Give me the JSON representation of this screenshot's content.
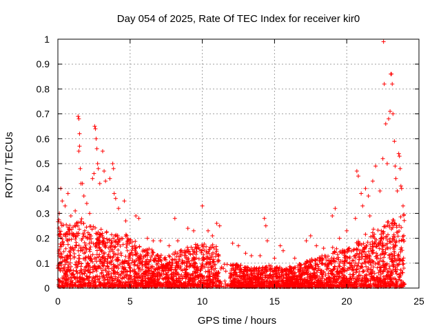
{
  "chart_data": {
    "type": "scatter",
    "title": "Day 054 of 2025, Rate Of TEC Index for receiver kir0",
    "xlabel": "GPS time / hours",
    "ylabel": "ROTI / TECUs",
    "xlim": [
      0,
      25
    ],
    "ylim": [
      0,
      1
    ],
    "xticks": [
      "0",
      "5",
      "10",
      "15",
      "20",
      "25"
    ],
    "yticks": [
      "0",
      "0.1",
      "0.2",
      "0.3",
      "0.4",
      "0.5",
      "0.6",
      "0.7",
      "0.8",
      "0.9",
      "1"
    ],
    "grid": true,
    "marker": "+",
    "color": "#ff0000",
    "series": [
      {
        "name": "ROTI",
        "points": [
          [
            0.1,
            0.3
          ],
          [
            0.2,
            0.4
          ],
          [
            0.3,
            0.35
          ],
          [
            0.5,
            0.33
          ],
          [
            0.7,
            0.38
          ],
          [
            0.9,
            0.29
          ],
          [
            1.2,
            0.31
          ],
          [
            1.4,
            0.69
          ],
          [
            1.45,
            0.68
          ],
          [
            1.5,
            0.62
          ],
          [
            1.5,
            0.57
          ],
          [
            1.45,
            0.55
          ],
          [
            1.55,
            0.48
          ],
          [
            1.6,
            0.42
          ],
          [
            1.7,
            0.42
          ],
          [
            1.8,
            0.37
          ],
          [
            2.0,
            0.34
          ],
          [
            2.2,
            0.3
          ],
          [
            2.4,
            0.44
          ],
          [
            2.5,
            0.46
          ],
          [
            2.55,
            0.65
          ],
          [
            2.6,
            0.64
          ],
          [
            2.65,
            0.6
          ],
          [
            2.7,
            0.56
          ],
          [
            2.75,
            0.5
          ],
          [
            2.8,
            0.48
          ],
          [
            2.9,
            0.42
          ],
          [
            3.1,
            0.55
          ],
          [
            3.2,
            0.47
          ],
          [
            3.3,
            0.43
          ],
          [
            3.6,
            0.44
          ],
          [
            3.8,
            0.5
          ],
          [
            3.85,
            0.48
          ],
          [
            3.9,
            0.38
          ],
          [
            4.0,
            0.36
          ],
          [
            4.2,
            0.32
          ],
          [
            4.6,
            0.35
          ],
          [
            4.7,
            0.27
          ],
          [
            5.4,
            0.29
          ],
          [
            5.6,
            0.28
          ],
          [
            6.2,
            0.2
          ],
          [
            6.6,
            0.19
          ],
          [
            7.1,
            0.19
          ],
          [
            7.7,
            0.17
          ],
          [
            8.1,
            0.28
          ],
          [
            8.3,
            0.19
          ],
          [
            9.0,
            0.24
          ],
          [
            9.4,
            0.23
          ],
          [
            9.6,
            0.16
          ],
          [
            10.0,
            0.33
          ],
          [
            10.4,
            0.23
          ],
          [
            10.7,
            0.21
          ],
          [
            11.0,
            0.26
          ],
          [
            11.2,
            0.25
          ],
          [
            12.1,
            0.18
          ],
          [
            12.5,
            0.17
          ],
          [
            13.0,
            0.14
          ],
          [
            13.4,
            0.13
          ],
          [
            14.0,
            0.13
          ],
          [
            14.3,
            0.28
          ],
          [
            14.4,
            0.25
          ],
          [
            14.5,
            0.19
          ],
          [
            15.0,
            0.12
          ],
          [
            15.4,
            0.17
          ],
          [
            15.6,
            0.15
          ],
          [
            16.4,
            0.12
          ],
          [
            17.2,
            0.19
          ],
          [
            17.5,
            0.21
          ],
          [
            17.9,
            0.17
          ],
          [
            18.4,
            0.16
          ],
          [
            19.0,
            0.29
          ],
          [
            19.2,
            0.32
          ],
          [
            19.5,
            0.2
          ],
          [
            20.0,
            0.23
          ],
          [
            20.6,
            0.28
          ],
          [
            20.7,
            0.47
          ],
          [
            20.8,
            0.45
          ],
          [
            21.0,
            0.38
          ],
          [
            21.1,
            0.33
          ],
          [
            21.3,
            0.4
          ],
          [
            21.5,
            0.37
          ],
          [
            21.6,
            0.29
          ],
          [
            21.8,
            0.43
          ],
          [
            22.0,
            0.49
          ],
          [
            22.3,
            0.39
          ],
          [
            22.5,
            0.52
          ],
          [
            22.55,
            0.99
          ],
          [
            22.6,
            0.82
          ],
          [
            22.7,
            0.66
          ],
          [
            22.8,
            0.5
          ],
          [
            22.9,
            0.68
          ],
          [
            23.0,
            0.71
          ],
          [
            23.05,
            0.86
          ],
          [
            23.1,
            0.86
          ],
          [
            23.15,
            0.82
          ],
          [
            23.2,
            0.7
          ],
          [
            23.3,
            0.59
          ],
          [
            23.35,
            0.49
          ],
          [
            23.4,
            0.44
          ],
          [
            23.5,
            0.39
          ],
          [
            23.6,
            0.54
          ],
          [
            23.65,
            0.53
          ],
          [
            23.7,
            0.48
          ],
          [
            23.75,
            0.41
          ],
          [
            23.8,
            0.4
          ],
          [
            23.9,
            0.33
          ],
          [
            23.95,
            0.08
          ]
        ]
      }
    ]
  }
}
